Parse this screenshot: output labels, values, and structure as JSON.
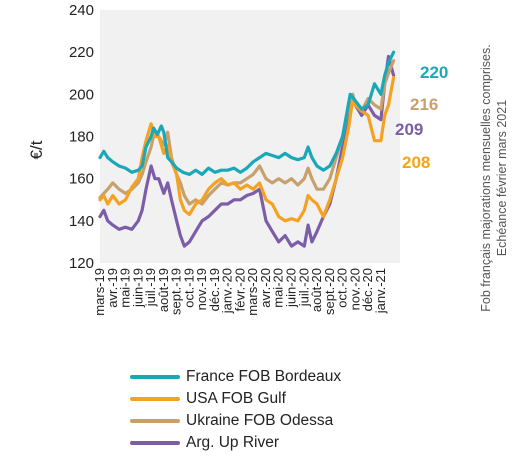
{
  "chart_data": {
    "type": "line",
    "ylabel": "€/t",
    "ylim": [
      120,
      240
    ],
    "yticks": [
      120,
      140,
      160,
      180,
      200,
      220,
      240
    ],
    "grid": false,
    "legend_position": "bottom",
    "xticks": [
      "mars-19",
      "avr.-19",
      "mai-19",
      "juin-19",
      "juil.-19",
      "août-19",
      "sept.-19",
      "oct.-19",
      "nov.-19",
      "déc.-19",
      "janv.-20",
      "févr.-20",
      "mars-20",
      "avr.-20",
      "mai-20",
      "juin-20",
      "juil.-20",
      "août-20",
      "sept.-20",
      "oct.-20",
      "nov.-20",
      "déc.-20",
      "janv.-21"
    ],
    "x_range": [
      0,
      23.5
    ],
    "note_lines": [
      "Fob français majorations mensuelles comprises.",
      "Echéance février  mars 2021"
    ],
    "series": [
      {
        "name": "France FOB Bordeaux",
        "color": "#1aa8b8",
        "end_label": "220",
        "points": [
          [
            0,
            170
          ],
          [
            0.3,
            173
          ],
          [
            0.6,
            170
          ],
          [
            1,
            168
          ],
          [
            1.5,
            166
          ],
          [
            2,
            165
          ],
          [
            2.5,
            163
          ],
          [
            3,
            164
          ],
          [
            3.3,
            166
          ],
          [
            3.6,
            175
          ],
          [
            4,
            180
          ],
          [
            4.2,
            184
          ],
          [
            4.5,
            181
          ],
          [
            4.8,
            185
          ],
          [
            5,
            182
          ],
          [
            5.3,
            170
          ],
          [
            5.6,
            168
          ],
          [
            6,
            165
          ],
          [
            6.5,
            163
          ],
          [
            7,
            162
          ],
          [
            7.5,
            164
          ],
          [
            8,
            162
          ],
          [
            8.5,
            165
          ],
          [
            9,
            163
          ],
          [
            9.5,
            164
          ],
          [
            10,
            164
          ],
          [
            10.5,
            165
          ],
          [
            11,
            163
          ],
          [
            11.5,
            165
          ],
          [
            12,
            168
          ],
          [
            12.5,
            170
          ],
          [
            13,
            172
          ],
          [
            13.5,
            171
          ],
          [
            14,
            170
          ],
          [
            14.5,
            172
          ],
          [
            15,
            170
          ],
          [
            15.5,
            169
          ],
          [
            16,
            170
          ],
          [
            16.3,
            175
          ],
          [
            16.6,
            170
          ],
          [
            17,
            166
          ],
          [
            17.5,
            164
          ],
          [
            18,
            166
          ],
          [
            18.5,
            172
          ],
          [
            19,
            180
          ],
          [
            19.3,
            190
          ],
          [
            19.6,
            200
          ],
          [
            20,
            197
          ],
          [
            20.5,
            193
          ],
          [
            21,
            195
          ],
          [
            21.5,
            205
          ],
          [
            22,
            200
          ],
          [
            22.3,
            209
          ],
          [
            22.6,
            215
          ],
          [
            23,
            220
          ]
        ]
      },
      {
        "name": "USA FOB Gulf",
        "color": "#f5a223",
        "end_label": "208",
        "points": [
          [
            0,
            150
          ],
          [
            0.3,
            152
          ],
          [
            0.6,
            148
          ],
          [
            1,
            152
          ],
          [
            1.5,
            148
          ],
          [
            2,
            150
          ],
          [
            2.5,
            156
          ],
          [
            3,
            160
          ],
          [
            3.3,
            170
          ],
          [
            3.6,
            178
          ],
          [
            4,
            186
          ],
          [
            4.3,
            180
          ],
          [
            4.6,
            180
          ],
          [
            5,
            172
          ],
          [
            5.3,
            176
          ],
          [
            5.6,
            168
          ],
          [
            6,
            162
          ],
          [
            6.3,
            150
          ],
          [
            6.6,
            145
          ],
          [
            7,
            143
          ],
          [
            7.5,
            148
          ],
          [
            8,
            150
          ],
          [
            8.5,
            155
          ],
          [
            9,
            158
          ],
          [
            9.5,
            160
          ],
          [
            10,
            157
          ],
          [
            10.5,
            158
          ],
          [
            11,
            155
          ],
          [
            11.5,
            157
          ],
          [
            12,
            155
          ],
          [
            12.5,
            158
          ],
          [
            13,
            150
          ],
          [
            13.5,
            148
          ],
          [
            14,
            142
          ],
          [
            14.5,
            140
          ],
          [
            15,
            141
          ],
          [
            15.5,
            140
          ],
          [
            16,
            145
          ],
          [
            16.3,
            152
          ],
          [
            16.6,
            150
          ],
          [
            17,
            148
          ],
          [
            17.5,
            142
          ],
          [
            18,
            150
          ],
          [
            18.5,
            160
          ],
          [
            19,
            170
          ],
          [
            19.5,
            185
          ],
          [
            19.8,
            198
          ],
          [
            20,
            195
          ],
          [
            20.5,
            192
          ],
          [
            21,
            190
          ],
          [
            21.5,
            178
          ],
          [
            22,
            178
          ],
          [
            22.3,
            190
          ],
          [
            22.6,
            195
          ],
          [
            23,
            208
          ]
        ]
      },
      {
        "name": "Ukraine FOB Odessa",
        "color": "#c8a06c",
        "end_label": "216",
        "points": [
          [
            0,
            151
          ],
          [
            0.3,
            153
          ],
          [
            0.6,
            155
          ],
          [
            1,
            158
          ],
          [
            1.5,
            155
          ],
          [
            2,
            153
          ],
          [
            2.5,
            155
          ],
          [
            3,
            158
          ],
          [
            3.3,
            162
          ],
          [
            3.6,
            168
          ],
          [
            4,
            175
          ],
          [
            4.3,
            183
          ],
          [
            4.6,
            180
          ],
          [
            5,
            176
          ],
          [
            5.3,
            182
          ],
          [
            5.6,
            170
          ],
          [
            6,
            162
          ],
          [
            6.3,
            158
          ],
          [
            6.6,
            152
          ],
          [
            7,
            148
          ],
          [
            7.5,
            150
          ],
          [
            8,
            148
          ],
          [
            8.5,
            152
          ],
          [
            9,
            155
          ],
          [
            9.5,
            158
          ],
          [
            10,
            157
          ],
          [
            10.5,
            158
          ],
          [
            11,
            158
          ],
          [
            11.5,
            160
          ],
          [
            12,
            162
          ],
          [
            12.5,
            166
          ],
          [
            13,
            160
          ],
          [
            13.5,
            158
          ],
          [
            14,
            160
          ],
          [
            14.5,
            158
          ],
          [
            15,
            160
          ],
          [
            15.5,
            157
          ],
          [
            16,
            160
          ],
          [
            16.3,
            165
          ],
          [
            16.6,
            160
          ],
          [
            17,
            155
          ],
          [
            17.5,
            155
          ],
          [
            18,
            160
          ],
          [
            18.5,
            170
          ],
          [
            19,
            180
          ],
          [
            19.5,
            195
          ],
          [
            19.8,
            200
          ],
          [
            20,
            195
          ],
          [
            20.5,
            192
          ],
          [
            21,
            198
          ],
          [
            21.5,
            195
          ],
          [
            22,
            193
          ],
          [
            22.3,
            205
          ],
          [
            22.6,
            210
          ],
          [
            23,
            216
          ]
        ]
      },
      {
        "name": "Arg. Up River",
        "color": "#7b5ea7",
        "end_label": "209",
        "points": [
          [
            0,
            142
          ],
          [
            0.3,
            145
          ],
          [
            0.6,
            140
          ],
          [
            1,
            138
          ],
          [
            1.5,
            136
          ],
          [
            2,
            137
          ],
          [
            2.5,
            136
          ],
          [
            3,
            140
          ],
          [
            3.3,
            145
          ],
          [
            3.6,
            155
          ],
          [
            4,
            166
          ],
          [
            4.3,
            160
          ],
          [
            4.6,
            160
          ],
          [
            5,
            153
          ],
          [
            5.3,
            158
          ],
          [
            5.6,
            150
          ],
          [
            6,
            140
          ],
          [
            6.3,
            133
          ],
          [
            6.6,
            128
          ],
          [
            7,
            130
          ],
          [
            7.5,
            135
          ],
          [
            8,
            140
          ],
          [
            8.5,
            142
          ],
          [
            9,
            145
          ],
          [
            9.5,
            148
          ],
          [
            10,
            148
          ],
          [
            10.5,
            150
          ],
          [
            11,
            150
          ],
          [
            11.5,
            152
          ],
          [
            12,
            153
          ],
          [
            12.5,
            155
          ],
          [
            13,
            140
          ],
          [
            13.5,
            135
          ],
          [
            14,
            130
          ],
          [
            14.5,
            133
          ],
          [
            15,
            128
          ],
          [
            15.5,
            130
          ],
          [
            16,
            128
          ],
          [
            16.3,
            138
          ],
          [
            16.6,
            130
          ],
          [
            17,
            135
          ],
          [
            17.5,
            142
          ],
          [
            18,
            148
          ],
          [
            18.5,
            160
          ],
          [
            19,
            175
          ],
          [
            19.5,
            190
          ],
          [
            19.8,
            198
          ],
          [
            20,
            195
          ],
          [
            20.5,
            190
          ],
          [
            21,
            195
          ],
          [
            21.5,
            190
          ],
          [
            22,
            188
          ],
          [
            22.3,
            205
          ],
          [
            22.6,
            218
          ],
          [
            23,
            209
          ]
        ]
      }
    ]
  }
}
